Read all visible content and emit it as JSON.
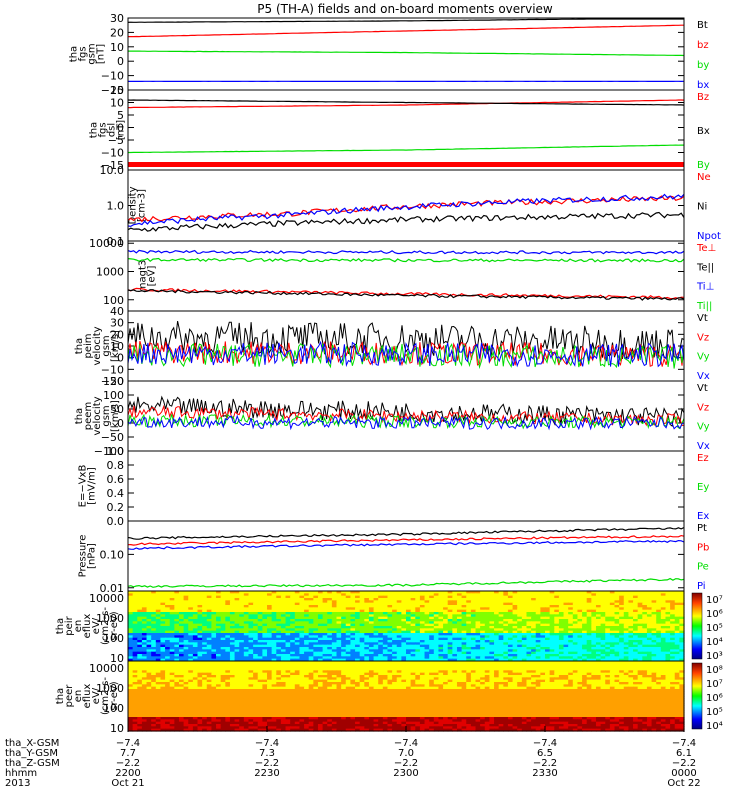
{
  "title": "P5 (TH-A) fields and on-board moments overview",
  "colors": {
    "black": "#000000",
    "red": "#ff0000",
    "green": "#00dd00",
    "blue": "#0000ff"
  },
  "chart_data": [
    {
      "type": "line",
      "id": "fgs",
      "ylabel": [
        "tha",
        "fgs",
        "gsm",
        "[nT]"
      ],
      "ylim": [
        -20,
        30
      ],
      "yticks": [
        "30",
        "20",
        "10",
        "0",
        "−10",
        "−20"
      ],
      "tick_values": [
        30,
        20,
        10,
        0,
        -10,
        -20
      ],
      "series": [
        {
          "name": "Bt",
          "color": "black",
          "x": [
            0,
            0.5,
            1
          ],
          "values": [
            27,
            28,
            30
          ]
        },
        {
          "name": "bz",
          "color": "red",
          "x": [
            0,
            0.5,
            1
          ],
          "values": [
            17,
            21,
            25
          ]
        },
        {
          "name": "by",
          "color": "green",
          "x": [
            0,
            0.5,
            1
          ],
          "values": [
            7,
            6,
            4
          ]
        },
        {
          "name": "bx",
          "color": "blue",
          "x": [
            0,
            0.5,
            1
          ],
          "values": [
            -14,
            -14,
            -14
          ]
        }
      ]
    },
    {
      "type": "line",
      "id": "fgs_dsl",
      "ylabel": [
        "tha",
        "fgs",
        "dsl",
        "[nT]"
      ],
      "ylim": [
        -17,
        15
      ],
      "yticks": [
        "15",
        "10",
        "5",
        "0",
        "−5",
        "−10",
        "−15"
      ],
      "tick_values": [
        15,
        10,
        5,
        0,
        -5,
        -10,
        -15
      ],
      "series": [
        {
          "name": "Bz",
          "color": "red",
          "x": [
            0,
            0.5,
            1
          ],
          "values": [
            8,
            9,
            11
          ]
        },
        {
          "name": "Bx",
          "color": "black",
          "x": [
            0,
            0.5,
            1
          ],
          "values": [
            11,
            10,
            9
          ]
        },
        {
          "name": "By",
          "color": "green",
          "x": [
            0,
            0.5,
            1
          ],
          "values": [
            -10,
            -9,
            -7
          ]
        }
      ]
    },
    {
      "type": "line",
      "id": "density",
      "ylabel": [
        "Density",
        "[cm-3]"
      ],
      "ylim": [
        0.1,
        10
      ],
      "log": true,
      "yticks": [
        "10.0",
        "1.0",
        "0.1"
      ],
      "tick_values": [
        10,
        1,
        0.1
      ],
      "series": [
        {
          "name": "Ne",
          "color": "red",
          "x": [
            0,
            0.3,
            0.6,
            1
          ],
          "values": [
            0.4,
            0.6,
            1.1,
            1.6
          ]
        },
        {
          "name": "Ni",
          "color": "black",
          "x": [
            0,
            0.5,
            1
          ],
          "values": [
            0.2,
            0.4,
            0.55
          ]
        },
        {
          "name": "Npot",
          "color": "blue",
          "x": [
            0,
            0.3,
            0.6,
            1
          ],
          "values": [
            0.3,
            0.55,
            1.1,
            1.8
          ]
        }
      ]
    },
    {
      "type": "line",
      "id": "temp",
      "ylabel": [
        "magt3",
        "[eV]"
      ],
      "ylim": [
        40,
        12000
      ],
      "log": true,
      "yticks": [
        "10000",
        "1000",
        "100"
      ],
      "tick_values": [
        10000,
        1000,
        100
      ],
      "series": [
        {
          "name": "Te⊥",
          "color": "red",
          "x": [
            0,
            0.5,
            1
          ],
          "values": [
            230,
            160,
            120
          ]
        },
        {
          "name": "Te||",
          "color": "black",
          "x": [
            0,
            0.5,
            1
          ],
          "values": [
            210,
            140,
            105
          ]
        },
        {
          "name": "Ti⊥",
          "color": "blue",
          "x": [
            0,
            0.5,
            1
          ],
          "values": [
            5000,
            4800,
            4700
          ]
        },
        {
          "name": "Ti||",
          "color": "green",
          "x": [
            0,
            0.5,
            1
          ],
          "values": [
            2600,
            2500,
            2450
          ]
        }
      ]
    },
    {
      "type": "line",
      "id": "peim",
      "ylabel": [
        "tha",
        "peim",
        "velocity",
        "gsm",
        "[km/s]"
      ],
      "ylim": [
        -20,
        40
      ],
      "yticks": [
        "40",
        "30",
        "20",
        "10",
        "0",
        "−10",
        "−20"
      ],
      "tick_values": [
        40,
        30,
        20,
        10,
        0,
        -10,
        -20
      ],
      "series": [
        {
          "name": "Vt",
          "color": "black",
          "x": [
            0,
            0.5,
            1
          ],
          "values": [
            18,
            16,
            12
          ]
        },
        {
          "name": "Vz",
          "color": "red",
          "x": [
            0,
            0.5,
            1
          ],
          "values": [
            5,
            4,
            2
          ]
        },
        {
          "name": "Vy",
          "color": "green",
          "x": [
            0,
            0.5,
            1
          ],
          "values": [
            2,
            2,
            0
          ]
        },
        {
          "name": "Vx",
          "color": "blue",
          "x": [
            0,
            0.5,
            1
          ],
          "values": [
            4,
            3,
            2
          ]
        }
      ]
    },
    {
      "type": "line",
      "id": "peem",
      "ylabel": [
        "tha",
        "peem",
        "velocity",
        "gsm",
        "[km/s]"
      ],
      "ylim": [
        -100,
        150
      ],
      "yticks": [
        "150",
        "100",
        "50",
        "0",
        "−50",
        "−100"
      ],
      "tick_values": [
        150,
        100,
        50,
        0,
        -50,
        -100
      ],
      "series": [
        {
          "name": "Vt",
          "color": "black",
          "x": [
            0,
            0.5,
            1
          ],
          "values": [
            60,
            40,
            20
          ]
        },
        {
          "name": "Vz",
          "color": "red",
          "x": [
            0,
            0.5,
            1
          ],
          "values": [
            40,
            25,
            10
          ]
        },
        {
          "name": "Vy",
          "color": "green",
          "x": [
            0,
            0.5,
            1
          ],
          "values": [
            10,
            5,
            2
          ]
        },
        {
          "name": "Vx",
          "color": "blue",
          "x": [
            0,
            0.5,
            1
          ],
          "values": [
            5,
            0,
            0
          ]
        }
      ]
    },
    {
      "type": "line",
      "id": "efield",
      "ylabel": [
        "E=−VxB",
        "[mV/m]"
      ],
      "ylim": [
        0,
        1
      ],
      "yticks": [
        "1.0",
        "0.8",
        "0.6",
        "0.4",
        "0.2",
        "0.0"
      ],
      "tick_values": [
        1,
        0.8,
        0.6,
        0.4,
        0.2,
        0
      ],
      "series": [
        {
          "name": "Ez",
          "color": "red",
          "x": [],
          "values": []
        },
        {
          "name": "Ey",
          "color": "green",
          "x": [],
          "values": []
        },
        {
          "name": "Ex",
          "color": "blue",
          "x": [],
          "values": []
        }
      ]
    },
    {
      "type": "line",
      "id": "pressure",
      "ylabel": [
        "Pressure",
        "[nPa]"
      ],
      "ylim": [
        0.008,
        1
      ],
      "log": true,
      "yticks": [
        "0.10",
        "0.01"
      ],
      "tick_values": [
        0.1,
        0.01
      ],
      "series": [
        {
          "name": "Pt",
          "color": "black",
          "x": [
            0,
            0.5,
            1
          ],
          "values": [
            0.3,
            0.4,
            0.6
          ]
        },
        {
          "name": "Pb",
          "color": "red",
          "x": [
            0,
            0.5,
            1
          ],
          "values": [
            0.2,
            0.27,
            0.35
          ]
        },
        {
          "name": "Pe",
          "color": "green",
          "x": [
            0,
            0.5,
            1
          ],
          "values": [
            0.011,
            0.012,
            0.018
          ]
        },
        {
          "name": "Pi",
          "color": "blue",
          "x": [
            0,
            0.5,
            1
          ],
          "values": [
            0.15,
            0.2,
            0.25
          ]
        }
      ]
    },
    {
      "type": "heatmap",
      "id": "peir",
      "ylabel": [
        "tha",
        "peir",
        "en",
        "eflux",
        "eV/",
        "(cm2-s-",
        "sr-eV)"
      ],
      "yticks": [
        "10000",
        "1000",
        "100",
        "10"
      ],
      "tick_values": [
        10000,
        1000,
        100,
        10
      ],
      "ylim": [
        7,
        22000
      ],
      "log": true,
      "colorbar": {
        "labels": [
          "10⁷",
          "10⁶",
          "10⁵",
          "10⁴",
          "10³"
        ],
        "range": [
          3,
          7
        ]
      }
    },
    {
      "type": "heatmap",
      "id": "peer",
      "ylabel": [
        "tha",
        "peer",
        "en",
        "eflux",
        "eV/",
        "(cm2-s-",
        "sr-eV)"
      ],
      "yticks": [
        "10000",
        "1000",
        "100",
        "10"
      ],
      "tick_values": [
        10000,
        1000,
        100,
        10
      ],
      "ylim": [
        7,
        22000
      ],
      "log": true,
      "colorbar": {
        "labels": [
          "10⁸",
          "10⁷",
          "10⁶",
          "10⁵",
          "10⁴"
        ],
        "range": [
          4,
          8
        ]
      }
    }
  ],
  "x_axis": {
    "ticks": [
      {
        "x_gsm": "−7.4",
        "y_gsm": "7.7",
        "z_gsm": "−2.2",
        "hhmm": "2200",
        "date": "Oct 21"
      },
      {
        "x_gsm": "−7.4",
        "y_gsm": "7.3",
        "z_gsm": "−2.2",
        "hhmm": "2230",
        "date": ""
      },
      {
        "x_gsm": "−7.4",
        "y_gsm": "7.0",
        "z_gsm": "−2.2",
        "hhmm": "2300",
        "date": ""
      },
      {
        "x_gsm": "−7.4",
        "y_gsm": "6.5",
        "z_gsm": "−2.2",
        "hhmm": "2330",
        "date": ""
      },
      {
        "x_gsm": "−7.4",
        "y_gsm": "6.1",
        "z_gsm": "−2.2",
        "hhmm": "0000",
        "date": "Oct 22"
      }
    ],
    "row_labels": [
      "tha_X-GSM",
      "tha_Y-GSM",
      "tha_Z-GSM",
      "hhmm",
      "2013"
    ]
  }
}
